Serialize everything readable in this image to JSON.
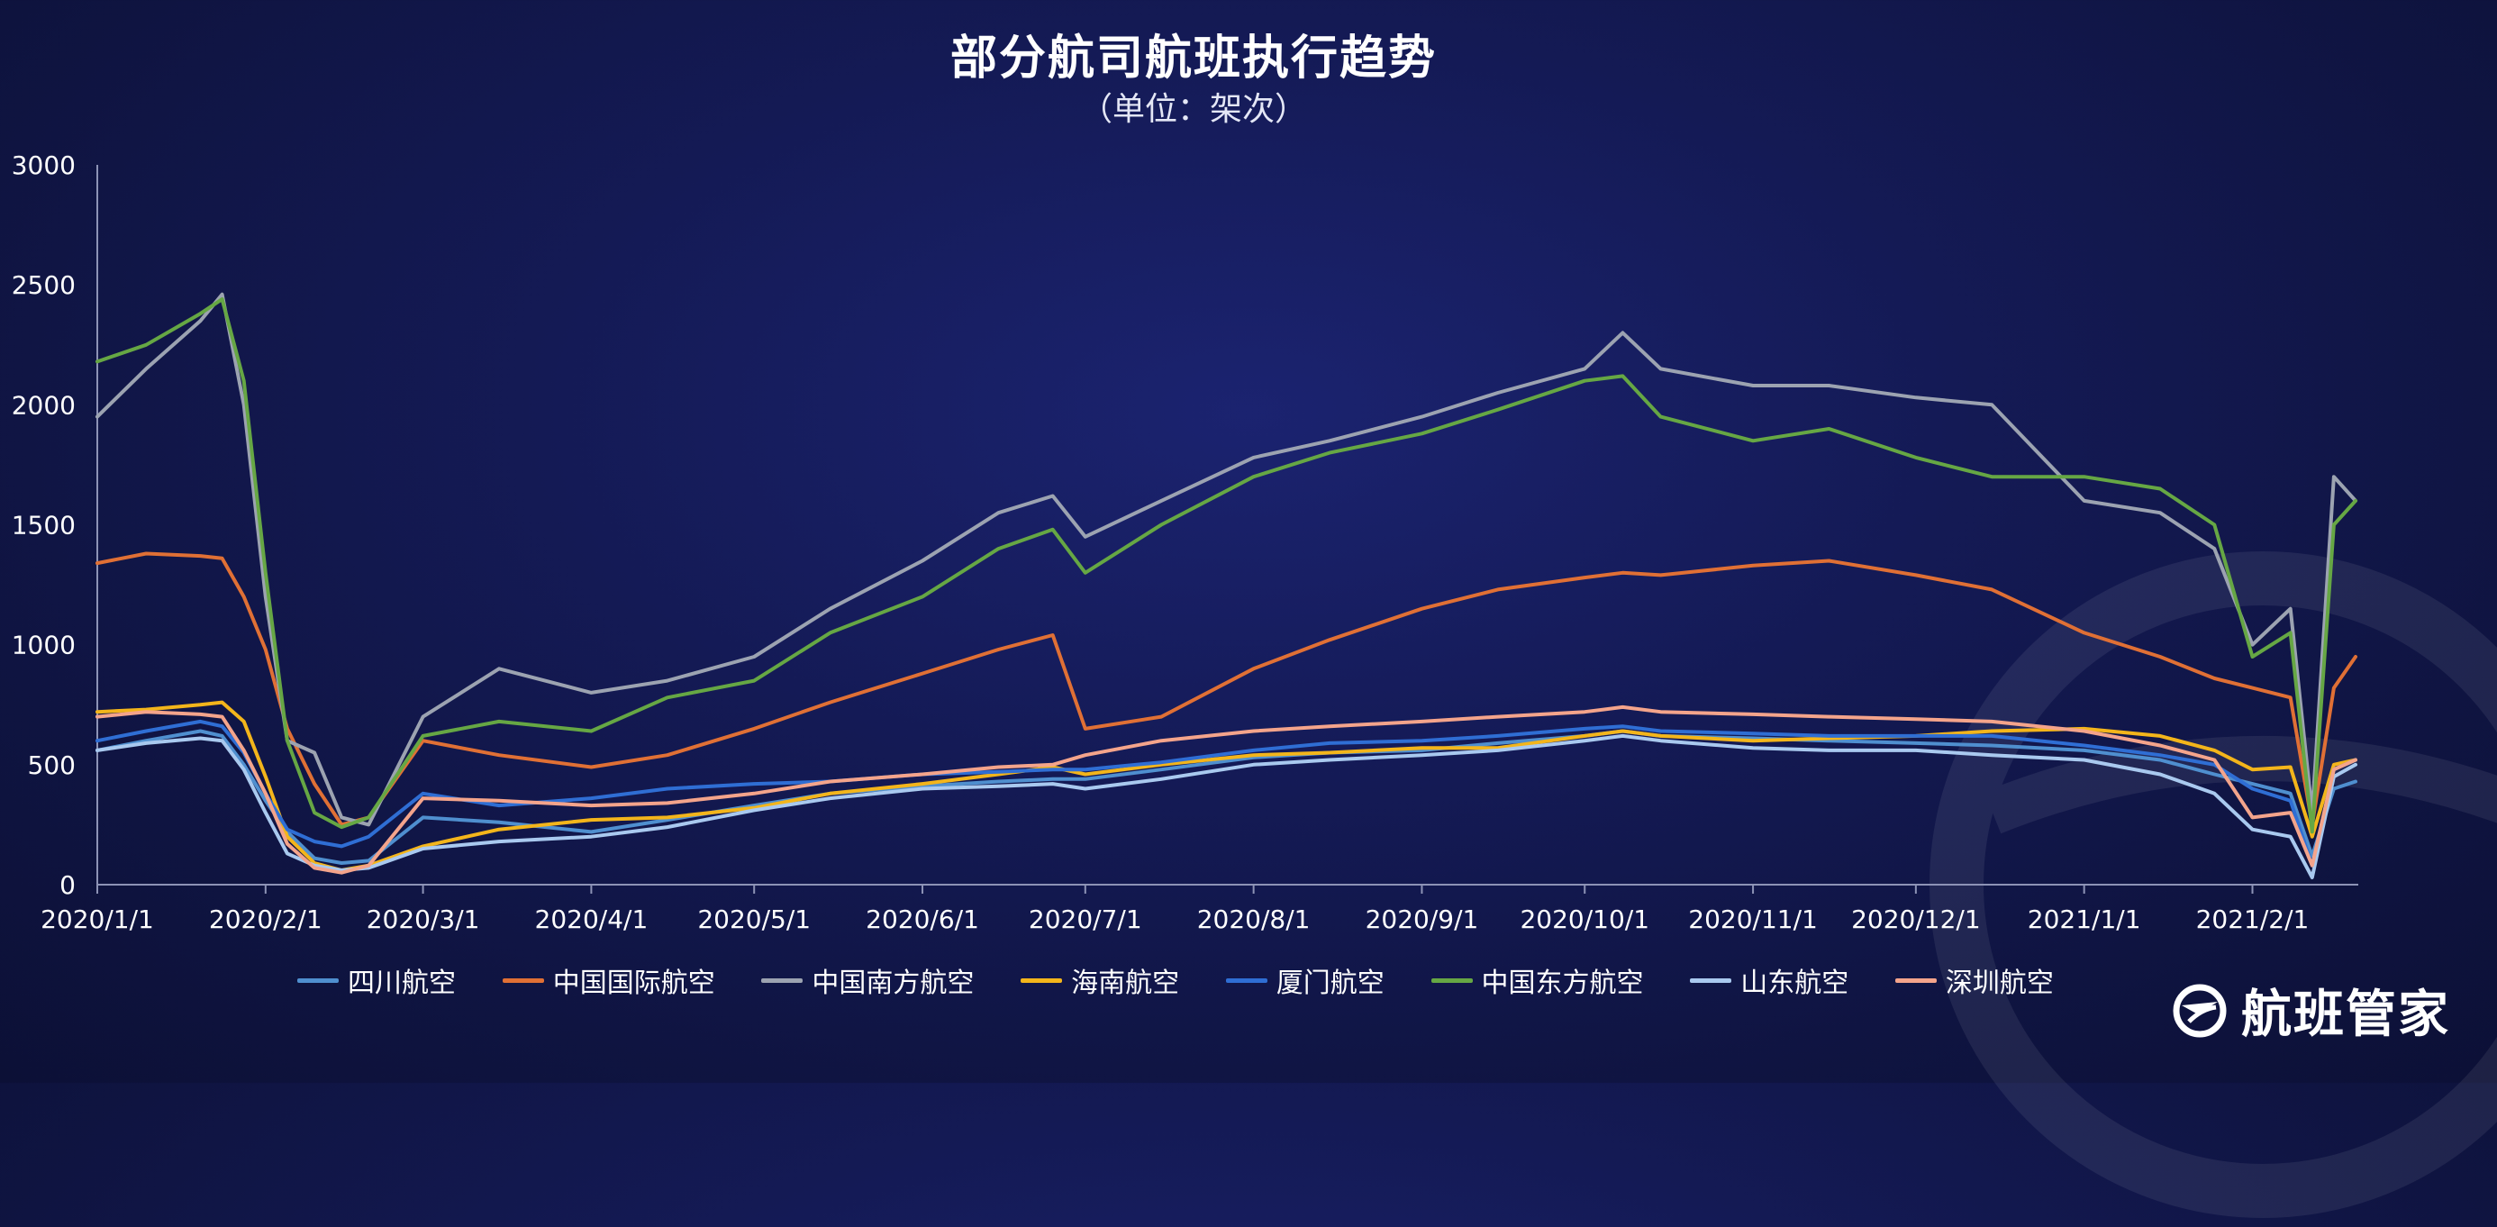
{
  "chart_data": {
    "type": "line",
    "title": "部分航司航班执行趋势",
    "subtitle": "（单位：架次）",
    "ylim": [
      0,
      3000
    ],
    "y_ticks": [
      0,
      500,
      1000,
      1500,
      2000,
      2500,
      3000
    ],
    "x_tick_labels": [
      "2020/1/1",
      "2020/2/1",
      "2020/3/1",
      "2020/4/1",
      "2020/5/1",
      "2020/6/1",
      "2020/7/1",
      "2020/8/1",
      "2020/9/1",
      "2020/10/1",
      "2020/11/1",
      "2020/12/1",
      "2021/1/1",
      "2021/2/1"
    ],
    "x": [
      "2020/1/1",
      "2020/1/10",
      "2020/1/20",
      "2020/1/24",
      "2020/1/28",
      "2020/2/1",
      "2020/2/5",
      "2020/2/10",
      "2020/2/15",
      "2020/2/20",
      "2020/3/1",
      "2020/3/15",
      "2020/4/1",
      "2020/4/15",
      "2020/5/1",
      "2020/5/15",
      "2020/6/1",
      "2020/6/15",
      "2020/6/25",
      "2020/7/1",
      "2020/7/15",
      "2020/8/1",
      "2020/8/15",
      "2020/9/1",
      "2020/9/15",
      "2020/10/1",
      "2020/10/8",
      "2020/10/15",
      "2020/11/1",
      "2020/11/15",
      "2020/12/1",
      "2020/12/15",
      "2021/1/1",
      "2021/1/15",
      "2021/1/25",
      "2021/2/1",
      "2021/2/8",
      "2021/2/12",
      "2021/2/16",
      "2021/2/20"
    ],
    "series": [
      {
        "name": "四川航空",
        "color": "#4f8fcf",
        "values": [
          560,
          600,
          640,
          620,
          500,
          350,
          220,
          110,
          90,
          100,
          280,
          260,
          220,
          270,
          330,
          380,
          410,
          430,
          440,
          440,
          480,
          530,
          550,
          560,
          590,
          620,
          640,
          620,
          610,
          600,
          590,
          580,
          560,
          520,
          460,
          420,
          380,
          120,
          400,
          430
        ]
      },
      {
        "name": "中国国际航空",
        "color": "#e07035",
        "values": [
          1340,
          1380,
          1370,
          1360,
          1200,
          980,
          650,
          420,
          250,
          280,
          600,
          540,
          490,
          540,
          650,
          760,
          880,
          980,
          1040,
          650,
          700,
          900,
          1020,
          1150,
          1230,
          1280,
          1300,
          1290,
          1330,
          1350,
          1290,
          1230,
          1050,
          950,
          860,
          820,
          780,
          250,
          820,
          950
        ]
      },
      {
        "name": "中国南方航空",
        "color": "#9ca3b1",
        "values": [
          1950,
          2150,
          2350,
          2460,
          2000,
          1200,
          600,
          550,
          280,
          250,
          700,
          900,
          800,
          850,
          950,
          1150,
          1350,
          1550,
          1620,
          1450,
          1600,
          1780,
          1850,
          1950,
          2050,
          2150,
          2300,
          2150,
          2080,
          2080,
          2030,
          2000,
          1600,
          1550,
          1400,
          1000,
          1150,
          300,
          1700,
          1600
        ]
      },
      {
        "name": "海南航空",
        "color": "#f3b51b",
        "values": [
          720,
          730,
          750,
          760,
          680,
          450,
          200,
          90,
          60,
          80,
          160,
          230,
          270,
          280,
          320,
          380,
          420,
          460,
          490,
          460,
          500,
          540,
          550,
          570,
          570,
          620,
          640,
          620,
          600,
          610,
          620,
          640,
          650,
          620,
          560,
          480,
          490,
          200,
          500,
          520
        ]
      },
      {
        "name": "厦门航空",
        "color": "#2f6ed4",
        "values": [
          600,
          640,
          680,
          660,
          550,
          380,
          230,
          180,
          160,
          200,
          380,
          330,
          360,
          400,
          420,
          430,
          460,
          470,
          480,
          480,
          510,
          560,
          590,
          600,
          620,
          650,
          660,
          640,
          630,
          620,
          620,
          620,
          580,
          540,
          500,
          400,
          350,
          80,
          480,
          520
        ]
      },
      {
        "name": "中国东方航空",
        "color": "#66a744",
        "values": [
          2180,
          2250,
          2380,
          2440,
          2100,
          1300,
          600,
          300,
          240,
          280,
          620,
          680,
          640,
          780,
          850,
          1050,
          1200,
          1400,
          1480,
          1300,
          1500,
          1700,
          1800,
          1880,
          1980,
          2100,
          2120,
          1950,
          1850,
          1900,
          1780,
          1700,
          1700,
          1650,
          1500,
          950,
          1050,
          220,
          1500,
          1600
        ]
      },
      {
        "name": "山东航空",
        "color": "#a9c9ef",
        "values": [
          560,
          590,
          610,
          600,
          480,
          300,
          130,
          80,
          60,
          70,
          150,
          180,
          200,
          240,
          310,
          360,
          400,
          410,
          420,
          400,
          440,
          500,
          520,
          540,
          560,
          600,
          620,
          600,
          570,
          560,
          560,
          540,
          520,
          460,
          380,
          230,
          200,
          30,
          450,
          500
        ]
      },
      {
        "name": "深圳航空",
        "color": "#f4a48b",
        "values": [
          700,
          720,
          710,
          700,
          560,
          380,
          170,
          70,
          50,
          80,
          360,
          350,
          330,
          340,
          380,
          430,
          460,
          490,
          500,
          540,
          600,
          640,
          660,
          680,
          700,
          720,
          740,
          720,
          710,
          700,
          690,
          680,
          640,
          580,
          520,
          280,
          300,
          80,
          480,
          520
        ]
      }
    ]
  },
  "brand": {
    "name": "航班管家"
  }
}
